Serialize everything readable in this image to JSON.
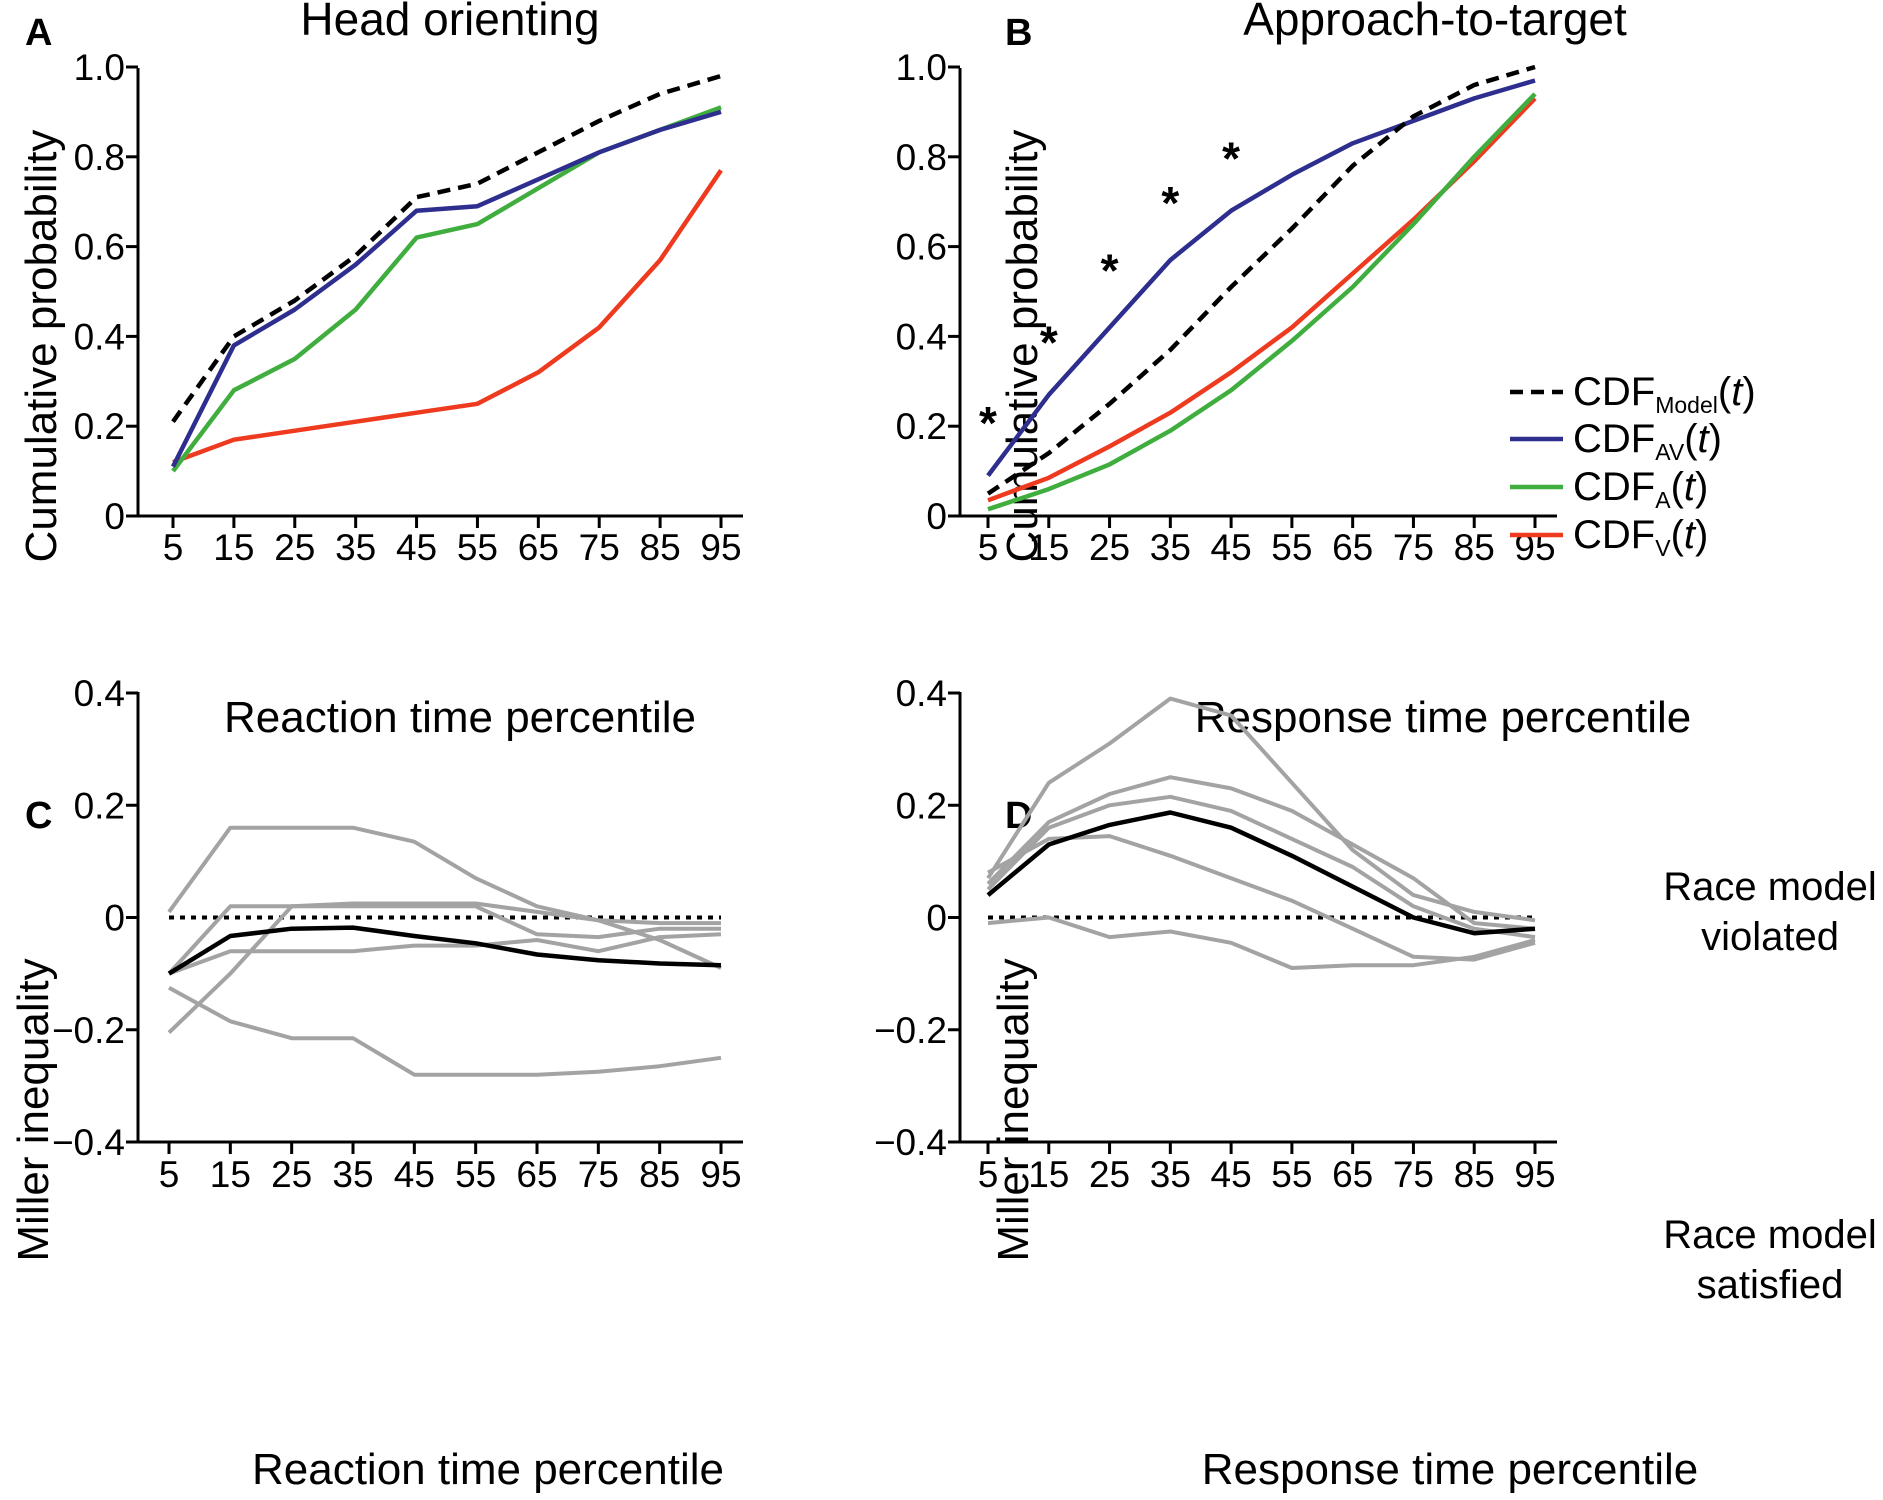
{
  "colors": {
    "model": "#000000",
    "av": "#2e2e8f",
    "a": "#3fae3f",
    "v": "#ee3a1f",
    "individual": "#a3a3a3",
    "mean": "#000000",
    "axis": "#000000"
  },
  "chart_data": [
    {
      "id": "A",
      "panel_letter": "A",
      "type": "line",
      "title": "Head orienting",
      "xlabel": "Reaction time percentile",
      "ylabel": "Cumulative probability",
      "x": [
        5,
        15,
        25,
        35,
        45,
        55,
        65,
        75,
        85,
        95
      ],
      "xticks": [
        "5",
        "15",
        "25",
        "35",
        "45",
        "55",
        "65",
        "75",
        "85",
        "95"
      ],
      "ylim": [
        0,
        1.0
      ],
      "yticks": [
        "0",
        "0.2",
        "0.4",
        "0.6",
        "0.8",
        "1.0"
      ],
      "ytick_values": [
        0,
        0.2,
        0.4,
        0.6,
        0.8,
        1.0
      ],
      "grid": false,
      "series": [
        {
          "key": "model",
          "style": "dashed",
          "values": [
            0.21,
            0.4,
            0.48,
            0.58,
            0.71,
            0.74,
            0.81,
            0.88,
            0.94,
            0.98
          ]
        },
        {
          "key": "av",
          "style": "solid",
          "values": [
            0.11,
            0.38,
            0.46,
            0.56,
            0.68,
            0.69,
            0.75,
            0.81,
            0.86,
            0.9
          ]
        },
        {
          "key": "a",
          "style": "solid",
          "values": [
            0.1,
            0.28,
            0.35,
            0.46,
            0.62,
            0.65,
            0.73,
            0.81,
            0.86,
            0.91
          ]
        },
        {
          "key": "v",
          "style": "solid",
          "values": [
            0.12,
            0.17,
            0.19,
            0.21,
            0.23,
            0.25,
            0.32,
            0.42,
            0.57,
            0.77
          ]
        }
      ]
    },
    {
      "id": "B",
      "panel_letter": "B",
      "type": "line",
      "title": "Approach-to-target",
      "xlabel": "Response time percentile",
      "ylabel": "Cumulative probability",
      "x": [
        5,
        15,
        25,
        35,
        45,
        55,
        65,
        75,
        85,
        95
      ],
      "xticks": [
        "5",
        "15",
        "25",
        "35",
        "45",
        "55",
        "65",
        "75",
        "85",
        "95"
      ],
      "ylim": [
        0,
        1.0
      ],
      "yticks": [
        "0",
        "0.2",
        "0.4",
        "0.6",
        "0.8",
        "1.0"
      ],
      "ytick_values": [
        0,
        0.2,
        0.4,
        0.6,
        0.8,
        1.0
      ],
      "grid": false,
      "series": [
        {
          "key": "model",
          "style": "dashed",
          "values": [
            0.05,
            0.14,
            0.25,
            0.37,
            0.51,
            0.64,
            0.78,
            0.89,
            0.96,
            1.0
          ]
        },
        {
          "key": "av",
          "style": "solid",
          "values": [
            0.09,
            0.27,
            0.42,
            0.57,
            0.68,
            0.76,
            0.83,
            0.88,
            0.93,
            0.97
          ]
        },
        {
          "key": "a",
          "style": "solid",
          "values": [
            0.015,
            0.06,
            0.115,
            0.19,
            0.28,
            0.39,
            0.51,
            0.65,
            0.8,
            0.94
          ]
        },
        {
          "key": "v",
          "style": "solid",
          "values": [
            0.035,
            0.085,
            0.155,
            0.23,
            0.32,
            0.42,
            0.54,
            0.66,
            0.79,
            0.93
          ]
        }
      ],
      "significance": {
        "symbol": "*",
        "x": [
          5,
          15,
          25,
          35,
          45
        ],
        "y": [
          0.22,
          0.4,
          0.56,
          0.71,
          0.81
        ]
      },
      "legend": {
        "position": "lower-right",
        "items": [
          {
            "key": "model",
            "style": "dashed",
            "prefix": "CDF",
            "sub": "Model",
            "suffix_open": "(",
            "var": "t",
            "suffix_close": ")"
          },
          {
            "key": "av",
            "style": "solid",
            "prefix": "CDF",
            "sub": "AV",
            "suffix_open": "(",
            "var": "t",
            "suffix_close": ")"
          },
          {
            "key": "a",
            "style": "solid",
            "prefix": "CDF",
            "sub": "A",
            "suffix_open": "(",
            "var": "t",
            "suffix_close": ")"
          },
          {
            "key": "v",
            "style": "solid",
            "prefix": "CDF",
            "sub": "V",
            "suffix_open": "(",
            "var": "t",
            "suffix_close": ")"
          }
        ]
      }
    },
    {
      "id": "C",
      "panel_letter": "C",
      "type": "line",
      "title": "",
      "xlabel": "Reaction time percentile",
      "ylabel": "Miller inequality",
      "x": [
        5,
        15,
        25,
        35,
        45,
        55,
        65,
        75,
        85,
        95
      ],
      "xticks": [
        "5",
        "15",
        "25",
        "35",
        "45",
        "55",
        "65",
        "75",
        "85",
        "95"
      ],
      "ylim": [
        -0.4,
        0.4
      ],
      "yticks": [
        "−0.4",
        "−0.2",
        "0",
        "0.2",
        "0.4"
      ],
      "ytick_values": [
        -0.4,
        -0.2,
        0,
        0.2,
        0.4
      ],
      "grid": false,
      "reference_line": {
        "y": 0,
        "style": "dotted"
      },
      "individual_series": [
        [
          0.01,
          0.16,
          0.16,
          0.16,
          0.135,
          0.07,
          0.02,
          -0.005,
          -0.04,
          -0.09
        ],
        [
          -0.1,
          0.02,
          0.02,
          0.02,
          0.02,
          0.02,
          -0.03,
          -0.035,
          -0.02,
          -0.02
        ],
        [
          -0.1,
          -0.06,
          -0.06,
          -0.06,
          -0.05,
          -0.05,
          -0.04,
          -0.06,
          -0.035,
          -0.03
        ],
        [
          -0.125,
          -0.185,
          -0.215,
          -0.215,
          -0.28,
          -0.28,
          -0.28,
          -0.275,
          -0.265,
          -0.25
        ],
        [
          -0.205,
          -0.1,
          0.02,
          0.025,
          0.025,
          0.025,
          0.01,
          -0.005,
          -0.01,
          -0.01
        ]
      ],
      "mean_series": [
        -0.1,
        -0.033,
        -0.02,
        -0.018,
        -0.033,
        -0.046,
        -0.066,
        -0.076,
        -0.082,
        -0.085
      ]
    },
    {
      "id": "D",
      "panel_letter": "D",
      "type": "line",
      "title": "",
      "xlabel": "Response time percentile",
      "ylabel": "Miller inequality",
      "x": [
        5,
        15,
        25,
        35,
        45,
        55,
        65,
        75,
        85,
        95
      ],
      "xticks": [
        "5",
        "15",
        "25",
        "35",
        "45",
        "55",
        "65",
        "75",
        "85",
        "95"
      ],
      "ylim": [
        -0.4,
        0.4
      ],
      "yticks": [
        "−0.4",
        "−0.2",
        "0",
        "0.2",
        "0.4"
      ],
      "ytick_values": [
        -0.4,
        -0.2,
        0,
        0.2,
        0.4
      ],
      "grid": false,
      "reference_line": {
        "y": 0,
        "style": "dotted"
      },
      "annotations": {
        "upper": [
          "Race model",
          "violated"
        ],
        "lower": [
          "Race model",
          "satisfied"
        ]
      },
      "individual_series": [
        [
          0.07,
          0.24,
          0.31,
          0.39,
          0.36,
          0.24,
          0.12,
          0.04,
          0.01,
          -0.005
        ],
        [
          0.06,
          0.17,
          0.22,
          0.25,
          0.23,
          0.19,
          0.13,
          0.07,
          -0.01,
          -0.02
        ],
        [
          0.05,
          0.16,
          0.2,
          0.215,
          0.19,
          0.14,
          0.09,
          0.02,
          -0.02,
          -0.035
        ],
        [
          0.08,
          0.14,
          0.145,
          0.11,
          0.07,
          0.03,
          -0.02,
          -0.07,
          -0.075,
          -0.045
        ],
        [
          -0.01,
          0.0,
          -0.035,
          -0.025,
          -0.045,
          -0.09,
          -0.085,
          -0.085,
          -0.07,
          -0.04
        ]
      ],
      "mean_series": [
        0.04,
        0.13,
        0.165,
        0.187,
        0.16,
        0.11,
        0.055,
        0.0,
        -0.028,
        -0.02
      ]
    }
  ]
}
